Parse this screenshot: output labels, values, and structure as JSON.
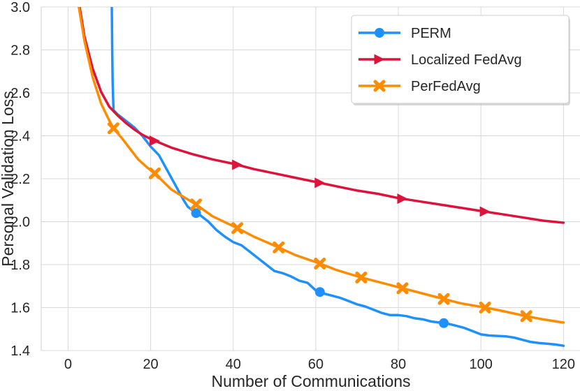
{
  "chart_data": {
    "type": "line",
    "title": "",
    "xlabel": "Number of Communications",
    "ylabel": "Personal Validation Loss",
    "xlim": [
      -6.5,
      124
    ],
    "ylim": [
      1.4,
      3.0
    ],
    "xticks": [
      0,
      20,
      40,
      60,
      80,
      100,
      120
    ],
    "yticks": [
      1.4,
      1.6,
      1.8,
      2.0,
      2.2,
      2.4,
      2.6,
      2.8,
      3.0
    ],
    "xtick_labels": [
      "0",
      "20",
      "40",
      "60",
      "80",
      "100",
      "120"
    ],
    "ytick_labels": [
      "1.4",
      "1.6",
      "1.8",
      "2.0",
      "2.2",
      "2.4",
      "2.6",
      "2.8",
      "3.0"
    ],
    "grid": true,
    "legend_position": "top-right",
    "series": [
      {
        "name": "PERM",
        "color": "#1e90ff",
        "marker": "circle",
        "x": [
          10.6,
          10.7,
          10.8,
          11,
          12,
          14,
          16,
          18,
          20,
          22,
          24,
          26,
          28,
          29,
          30,
          31,
          32,
          34,
          36,
          38,
          40,
          42,
          44,
          46,
          48,
          50,
          52,
          54,
          56,
          58,
          60,
          62,
          64,
          66,
          68,
          70,
          72,
          74,
          76,
          78,
          80,
          82,
          84,
          86,
          88,
          90,
          92,
          94,
          96,
          98,
          100,
          102,
          104,
          106,
          108,
          110,
          112,
          114,
          116,
          118,
          120
        ],
        "y": [
          3.0,
          2.8,
          2.65,
          2.52,
          2.5,
          2.47,
          2.44,
          2.4,
          2.35,
          2.31,
          2.24,
          2.17,
          2.1,
          2.07,
          2.055,
          2.04,
          2.03,
          2.0,
          1.96,
          1.93,
          1.905,
          1.89,
          1.86,
          1.83,
          1.8,
          1.77,
          1.76,
          1.745,
          1.725,
          1.715,
          1.68,
          1.665,
          1.655,
          1.645,
          1.63,
          1.615,
          1.605,
          1.59,
          1.575,
          1.565,
          1.565,
          1.56,
          1.55,
          1.545,
          1.535,
          1.53,
          1.525,
          1.515,
          1.505,
          1.49,
          1.475,
          1.47,
          1.468,
          1.466,
          1.46,
          1.45,
          1.44,
          1.435,
          1.432,
          1.428,
          1.422
        ],
        "marker_x": [
          31,
          61,
          91
        ]
      },
      {
        "name": "Localized FedAvg",
        "color": "#dc143c",
        "marker": "triangle-right",
        "x": [
          2.8,
          4,
          6,
          8,
          10,
          12,
          14,
          16,
          18,
          20,
          25,
          30,
          35,
          40,
          45,
          50,
          55,
          60,
          65,
          70,
          75,
          80,
          85,
          90,
          95,
          100,
          105,
          110,
          115,
          120
        ],
        "y": [
          3.0,
          2.86,
          2.71,
          2.605,
          2.535,
          2.495,
          2.46,
          2.43,
          2.405,
          2.385,
          2.345,
          2.315,
          2.29,
          2.27,
          2.245,
          2.225,
          2.205,
          2.185,
          2.165,
          2.145,
          2.13,
          2.11,
          2.095,
          2.08,
          2.065,
          2.05,
          2.035,
          2.02,
          2.005,
          1.995
        ],
        "marker_x": [
          21,
          41,
          61,
          81,
          101
        ]
      },
      {
        "name": "PerFedAvg",
        "color": "#ff8c00",
        "marker": "x-filled",
        "x": [
          2.6,
          4,
          6,
          8,
          10,
          11,
          13,
          15,
          17,
          19,
          21,
          25,
          31,
          35,
          41,
          45,
          51,
          55,
          61,
          65,
          71,
          75,
          81,
          85,
          91,
          95,
          101,
          105,
          111,
          115,
          120
        ],
        "y": [
          3.0,
          2.84,
          2.67,
          2.55,
          2.47,
          2.435,
          2.39,
          2.34,
          2.29,
          2.255,
          2.225,
          2.15,
          2.08,
          2.025,
          1.97,
          1.93,
          1.88,
          1.845,
          1.805,
          1.775,
          1.74,
          1.72,
          1.69,
          1.67,
          1.64,
          1.62,
          1.6,
          1.585,
          1.56,
          1.545,
          1.53
        ],
        "marker_x": [
          11,
          21,
          31,
          41,
          51,
          61,
          71,
          81,
          91,
          101,
          111
        ]
      }
    ]
  }
}
